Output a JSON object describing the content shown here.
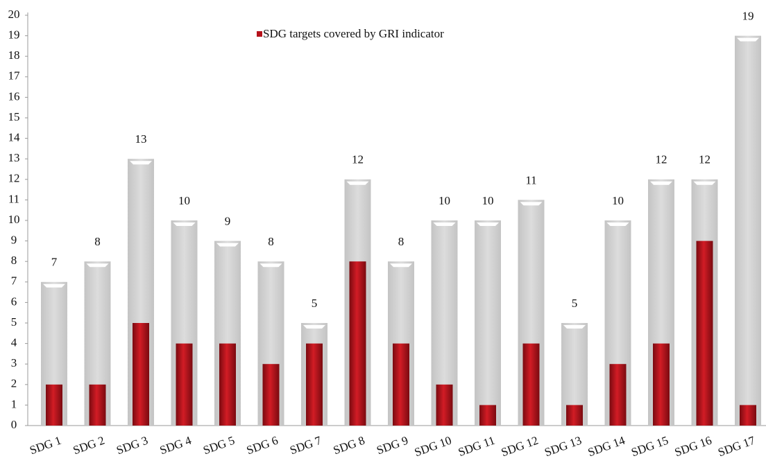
{
  "chart_data": {
    "type": "bar",
    "categories": [
      "SDG 1",
      "SDG 2",
      "SDG 3",
      "SDG 4",
      "SDG 5",
      "SDG 6",
      "SDG 7",
      "SDG 8",
      "SDG 9",
      "SDG 10",
      "SDG 11",
      "SDG 12",
      "SDG 13",
      "SDG 14",
      "SDG 15",
      "SDG 16",
      "SDG 17"
    ],
    "series": [
      {
        "color": "#d3d3d3",
        "values": [
          7,
          8,
          13,
          10,
          9,
          8,
          5,
          12,
          8,
          10,
          10,
          11,
          5,
          10,
          12,
          12,
          19
        ]
      },
      {
        "name": "SDG targets covered by GRI indicator",
        "color": "#b5121b",
        "values": [
          2,
          2,
          5,
          4,
          4,
          3,
          4,
          8,
          4,
          2,
          1,
          4,
          1,
          3,
          4,
          9,
          1
        ]
      }
    ],
    "ylim": [
      0,
      20
    ],
    "yticks": [
      0,
      1,
      2,
      3,
      4,
      5,
      6,
      7,
      8,
      9,
      10,
      11,
      12,
      13,
      14,
      15,
      16,
      17,
      18,
      19,
      20
    ],
    "legend": "top",
    "grid": false
  }
}
